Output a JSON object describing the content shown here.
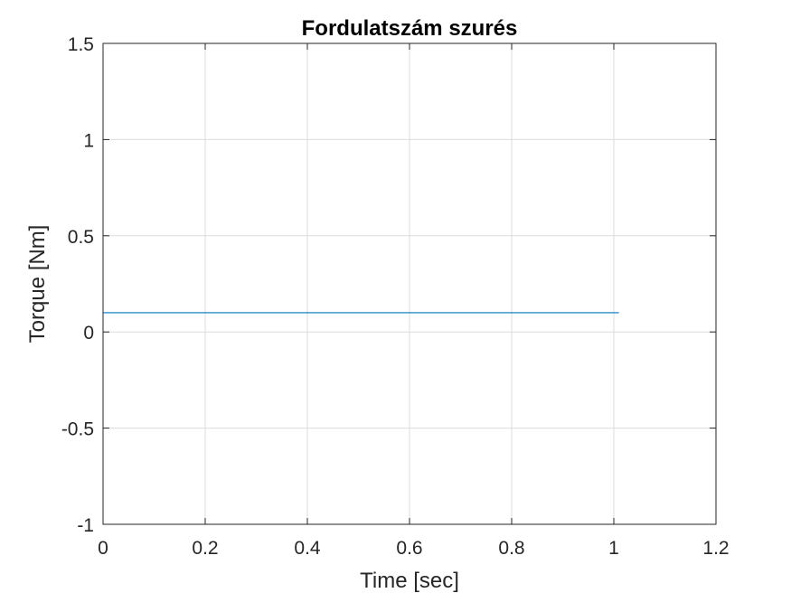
{
  "chart_data": {
    "type": "line",
    "title": "Fordulatszám szurés",
    "xlabel": "Time [sec]",
    "ylabel": "Torque [Nm]",
    "xlim": [
      0,
      1.2
    ],
    "ylim": [
      -1,
      1.5
    ],
    "xticks": [
      "0",
      "0.2",
      "0.4",
      "0.6",
      "0.8",
      "1",
      "1.2"
    ],
    "yticks": [
      "-1",
      "-0.5",
      "0",
      "0.5",
      "1",
      "1.5"
    ],
    "grid": true,
    "series": [
      {
        "color": "#0072BD",
        "x": [
          0,
          1.01
        ],
        "y": [
          0.1,
          0.1
        ]
      }
    ]
  }
}
